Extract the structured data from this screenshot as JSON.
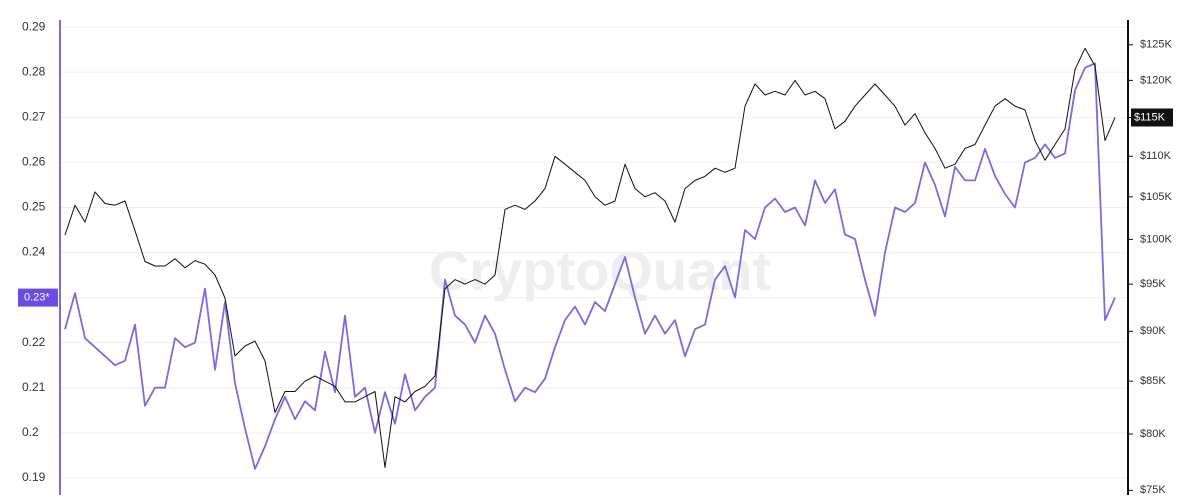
{
  "chart_data": {
    "type": "dual-axis-line",
    "watermark": "CryptoQuant",
    "grid": true,
    "y2log": true,
    "y_highlight": 0.23,
    "y2_highlight": 115000,
    "ylim": [
      0.1862,
      0.2916
    ],
    "yticks": [
      0.19,
      0.2,
      0.21,
      0.22,
      {
        "value": 0.23,
        "label": "0.23*"
      },
      0.24,
      0.25,
      0.26,
      0.27,
      0.28,
      0.29
    ],
    "y2lim": [
      74600,
      128600
    ],
    "y2ticks": [
      {
        "value": 75000,
        "label": "$75K"
      },
      {
        "value": 80000,
        "label": "$80K"
      },
      {
        "value": 85000,
        "label": "$85K"
      },
      {
        "value": 90000,
        "label": "$90K"
      },
      {
        "value": 95000,
        "label": "$95K"
      },
      {
        "value": 100000,
        "label": "$100K"
      },
      {
        "value": 105000,
        "label": "$105K"
      },
      {
        "value": 110000,
        "label": "$110K"
      },
      {
        "value": 115000,
        "label": "$115K"
      },
      {
        "value": 120000,
        "label": "$120K"
      },
      {
        "value": 125000,
        "label": "$125K"
      }
    ],
    "series": [
      {
        "color": "#7b6be0",
        "axis": "y",
        "values": [
          0.223,
          0.231,
          0.221,
          0.219,
          0.217,
          0.215,
          0.216,
          0.224,
          0.206,
          0.21,
          0.21,
          0.221,
          0.219,
          0.22,
          0.232,
          0.214,
          0.229,
          0.211,
          0.201,
          0.192,
          0.197,
          0.203,
          0.208,
          0.203,
          0.207,
          0.205,
          0.218,
          0.209,
          0.226,
          0.208,
          0.21,
          0.2,
          0.209,
          0.202,
          0.213,
          0.205,
          0.208,
          0.21,
          0.234,
          0.226,
          0.224,
          0.22,
          0.226,
          0.222,
          0.214,
          0.207,
          0.21,
          0.209,
          0.212,
          0.219,
          0.225,
          0.228,
          0.224,
          0.229,
          0.227,
          0.233,
          0.239,
          0.23,
          0.222,
          0.226,
          0.222,
          0.225,
          0.217,
          0.223,
          0.224,
          0.234,
          0.237,
          0.23,
          0.245,
          0.243,
          0.25,
          0.252,
          0.249,
          0.25,
          0.246,
          0.256,
          0.251,
          0.254,
          0.244,
          0.243,
          0.234,
          0.226,
          0.24,
          0.25,
          0.249,
          0.251,
          0.26,
          0.255,
          0.248,
          0.259,
          0.256,
          0.256,
          0.263,
          0.257,
          0.253,
          0.25,
          0.26,
          0.261,
          0.264,
          0.261,
          0.262,
          0.276,
          0.281,
          0.282,
          0.225,
          0.23
        ]
      },
      {
        "color": "#111111",
        "axis": "y2",
        "values": [
          100500,
          104000,
          102000,
          105600,
          104200,
          104000,
          104500,
          101000,
          97500,
          97000,
          97000,
          97800,
          96800,
          97600,
          97200,
          96000,
          93500,
          87500,
          88500,
          89000,
          87000,
          82000,
          84000,
          84000,
          85000,
          85500,
          85000,
          84500,
          83000,
          83000,
          83500,
          84000,
          77000,
          83500,
          83000,
          84000,
          84500,
          85500,
          94500,
          95500,
          95000,
          95500,
          95000,
          96000,
          103500,
          104000,
          103500,
          104500,
          106000,
          110000,
          109000,
          108000,
          107000,
          105000,
          104000,
          104500,
          109000,
          106000,
          105000,
          105500,
          104500,
          102000,
          106000,
          107000,
          107500,
          108500,
          108000,
          108500,
          116500,
          119500,
          118000,
          118500,
          118000,
          120000,
          118000,
          118500,
          117500,
          113500,
          114500,
          116500,
          118000,
          119500,
          118000,
          116500,
          114000,
          115500,
          113000,
          111000,
          108500,
          109000,
          111000,
          111500,
          114000,
          116500,
          117500,
          116500,
          116000,
          112000,
          109500,
          111500,
          113500,
          121500,
          124500,
          122000,
          112000,
          115000
        ]
      }
    ]
  }
}
